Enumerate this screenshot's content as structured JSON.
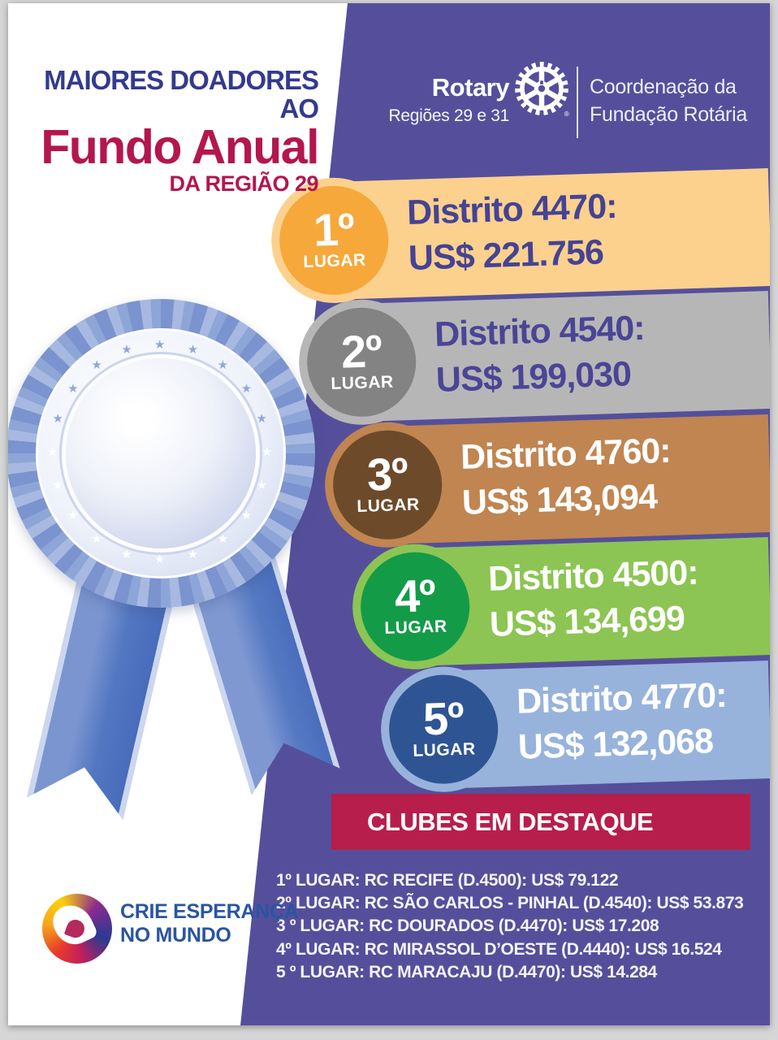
{
  "poster": {
    "title_line1": "MAIORES DOADORES AO",
    "title_line2": "Fundo Anual",
    "title_line3": "DA REGIÃO 29"
  },
  "brand": {
    "wordmark": "Rotary",
    "regions": "Regiões 29 e 31",
    "trademark": "®",
    "org_line1": "Coordenação da",
    "org_line2": "Fundação Rotária"
  },
  "ranking": [
    {
      "rank": "1º",
      "rank_word": "LUGAR",
      "district": "Distrito 4470:",
      "amount": "US$ 221.756",
      "bar_color": "#fcd18e",
      "badge_color": "#f6a83b",
      "text_color": "#454394"
    },
    {
      "rank": "2º",
      "rank_word": "LUGAR",
      "district": "Distrito 4540:",
      "amount": "US$ 199,030",
      "bar_color": "#b7b6b6",
      "badge_color": "#838383",
      "text_color": "#4a4596"
    },
    {
      "rank": "3º",
      "rank_word": "LUGAR",
      "district": "Distrito 4760:",
      "amount": "US$ 143,094",
      "bar_color": "#c08551",
      "badge_color": "#6d4a2a",
      "text_color": "#ffffff"
    },
    {
      "rank": "4º",
      "rank_word": "LUGAR",
      "district": "Distrito 4500:",
      "amount": "US$ 134,699",
      "bar_color": "#8cc553",
      "badge_color": "#149b48",
      "text_color": "#ffffff"
    },
    {
      "rank": "5º",
      "rank_word": "LUGAR",
      "district": "Distrito 4770:",
      "amount": "US$ 132,068",
      "bar_color": "#97b3dc",
      "badge_color": "#2e5494",
      "text_color": "#ffffff"
    }
  ],
  "clubs": {
    "title": "CLUBES EM DESTAQUE",
    "banner_color": "#b71e4c",
    "items": [
      "1º LUGAR: RC RECIFE (D.4500): US$ 79.122",
      "2º LUGAR: RC SÃO CARLOS - PINHAL (D.4540): US$ 53.873",
      "3 º LUGAR: RC DOURADOS (D.4470): US$ 17.208",
      "4º LUGAR: RC MIRASSOL D’OESTE (D.4440): US$ 16.524",
      "5 º LUGAR: RC MARACAJU (D.4470): US$ 14.284"
    ]
  },
  "footer": {
    "theme_line1": "CRIE ESPERANÇA",
    "theme_line2": "NO MUNDO"
  },
  "colors": {
    "panel_purple": "#554f9b",
    "title_blue": "#333a8e",
    "title_crimson": "#b4164e",
    "banner_red": "#b71e4c",
    "theme_text_blue": "#2a55a0",
    "ribbon_blue": "#5377c1"
  }
}
